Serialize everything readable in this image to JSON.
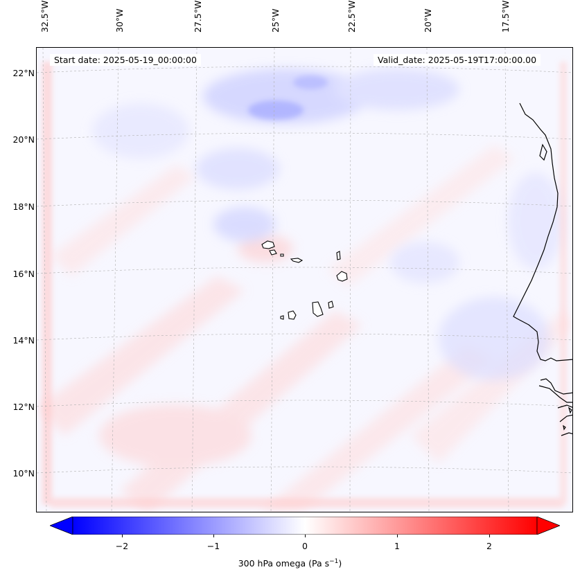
{
  "map": {
    "start_date": "Start date: 2025-05-19_00:00:00",
    "valid_date": "Valid_date: 2025-05-19T17:00:00.00",
    "lon_labels": [
      "32.5°W",
      "30°W",
      "27.5°W",
      "25°W",
      "22.5°W",
      "20°W",
      "17.5°W"
    ],
    "lat_labels": [
      "22°N",
      "20°N",
      "18°N",
      "16°N",
      "14°N",
      "12°N",
      "10°N"
    ],
    "coastline_color": "#000000",
    "gridline_color": "#b0b0b0"
  },
  "colorbar": {
    "tick_labels": [
      "−2",
      "−1",
      "0",
      "1",
      "2"
    ],
    "tick_values": [
      -2,
      -1,
      0,
      1,
      2
    ],
    "range": [
      -2.6,
      2.6
    ],
    "label_main": "300 hPa omega (Pa s",
    "label_sup": "−1",
    "label_end": ")",
    "low_color": "#0000ff",
    "mid_color": "#ffffff",
    "high_color": "#ff0000"
  }
}
